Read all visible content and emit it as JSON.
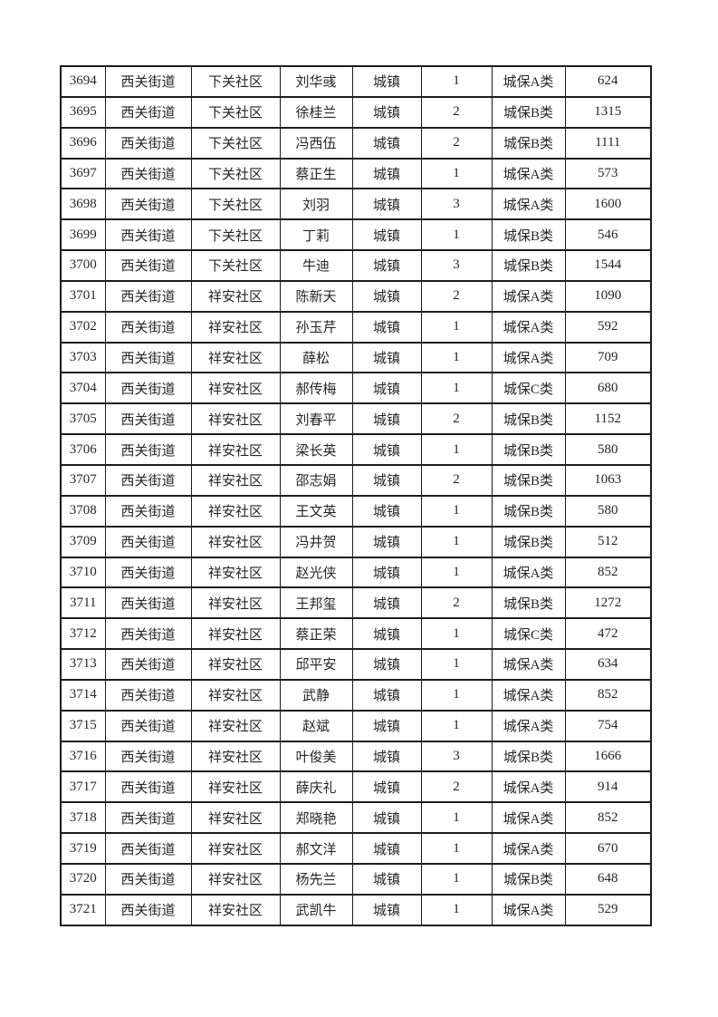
{
  "colors": {
    "background": "#ffffff",
    "border": "#1c1c1c",
    "text": "#262626"
  },
  "table": {
    "rows": [
      [
        "3694",
        "西关街道",
        "下关社区",
        "刘华彧",
        "城镇",
        "1",
        "城保A类",
        "624"
      ],
      [
        "3695",
        "西关街道",
        "下关社区",
        "徐桂兰",
        "城镇",
        "2",
        "城保B类",
        "1315"
      ],
      [
        "3696",
        "西关街道",
        "下关社区",
        "冯西伍",
        "城镇",
        "2",
        "城保B类",
        "1111"
      ],
      [
        "3697",
        "西关街道",
        "下关社区",
        "蔡正生",
        "城镇",
        "1",
        "城保A类",
        "573"
      ],
      [
        "3698",
        "西关街道",
        "下关社区",
        "刘羽",
        "城镇",
        "3",
        "城保A类",
        "1600"
      ],
      [
        "3699",
        "西关街道",
        "下关社区",
        "丁莉",
        "城镇",
        "1",
        "城保B类",
        "546"
      ],
      [
        "3700",
        "西关街道",
        "下关社区",
        "牛迪",
        "城镇",
        "3",
        "城保B类",
        "1544"
      ],
      [
        "3701",
        "西关街道",
        "祥安社区",
        "陈新天",
        "城镇",
        "2",
        "城保A类",
        "1090"
      ],
      [
        "3702",
        "西关街道",
        "祥安社区",
        "孙玉芹",
        "城镇",
        "1",
        "城保A类",
        "592"
      ],
      [
        "3703",
        "西关街道",
        "祥安社区",
        "薛松",
        "城镇",
        "1",
        "城保A类",
        "709"
      ],
      [
        "3704",
        "西关街道",
        "祥安社区",
        "郝传梅",
        "城镇",
        "1",
        "城保C类",
        "680"
      ],
      [
        "3705",
        "西关街道",
        "祥安社区",
        "刘春平",
        "城镇",
        "2",
        "城保B类",
        "1152"
      ],
      [
        "3706",
        "西关街道",
        "祥安社区",
        "梁长英",
        "城镇",
        "1",
        "城保B类",
        "580"
      ],
      [
        "3707",
        "西关街道",
        "祥安社区",
        "邵志娟",
        "城镇",
        "2",
        "城保B类",
        "1063"
      ],
      [
        "3708",
        "西关街道",
        "祥安社区",
        "王文英",
        "城镇",
        "1",
        "城保B类",
        "580"
      ],
      [
        "3709",
        "西关街道",
        "祥安社区",
        "冯井贺",
        "城镇",
        "1",
        "城保B类",
        "512"
      ],
      [
        "3710",
        "西关街道",
        "祥安社区",
        "赵光侠",
        "城镇",
        "1",
        "城保A类",
        "852"
      ],
      [
        "3711",
        "西关街道",
        "祥安社区",
        "王邦玺",
        "城镇",
        "2",
        "城保B类",
        "1272"
      ],
      [
        "3712",
        "西关街道",
        "祥安社区",
        "蔡正荣",
        "城镇",
        "1",
        "城保C类",
        "472"
      ],
      [
        "3713",
        "西关街道",
        "祥安社区",
        "邱平安",
        "城镇",
        "1",
        "城保A类",
        "634"
      ],
      [
        "3714",
        "西关街道",
        "祥安社区",
        "武静",
        "城镇",
        "1",
        "城保A类",
        "852"
      ],
      [
        "3715",
        "西关街道",
        "祥安社区",
        "赵斌",
        "城镇",
        "1",
        "城保A类",
        "754"
      ],
      [
        "3716",
        "西关街道",
        "祥安社区",
        "叶俊美",
        "城镇",
        "3",
        "城保B类",
        "1666"
      ],
      [
        "3717",
        "西关街道",
        "祥安社区",
        "薛庆礼",
        "城镇",
        "2",
        "城保A类",
        "914"
      ],
      [
        "3718",
        "西关街道",
        "祥安社区",
        "郑晓艳",
        "城镇",
        "1",
        "城保A类",
        "852"
      ],
      [
        "3719",
        "西关街道",
        "祥安社区",
        "郝文洋",
        "城镇",
        "1",
        "城保A类",
        "670"
      ],
      [
        "3720",
        "西关街道",
        "祥安社区",
        "杨先兰",
        "城镇",
        "1",
        "城保B类",
        "648"
      ],
      [
        "3721",
        "西关街道",
        "祥安社区",
        "武凯牛",
        "城镇",
        "1",
        "城保A类",
        "529"
      ]
    ]
  }
}
